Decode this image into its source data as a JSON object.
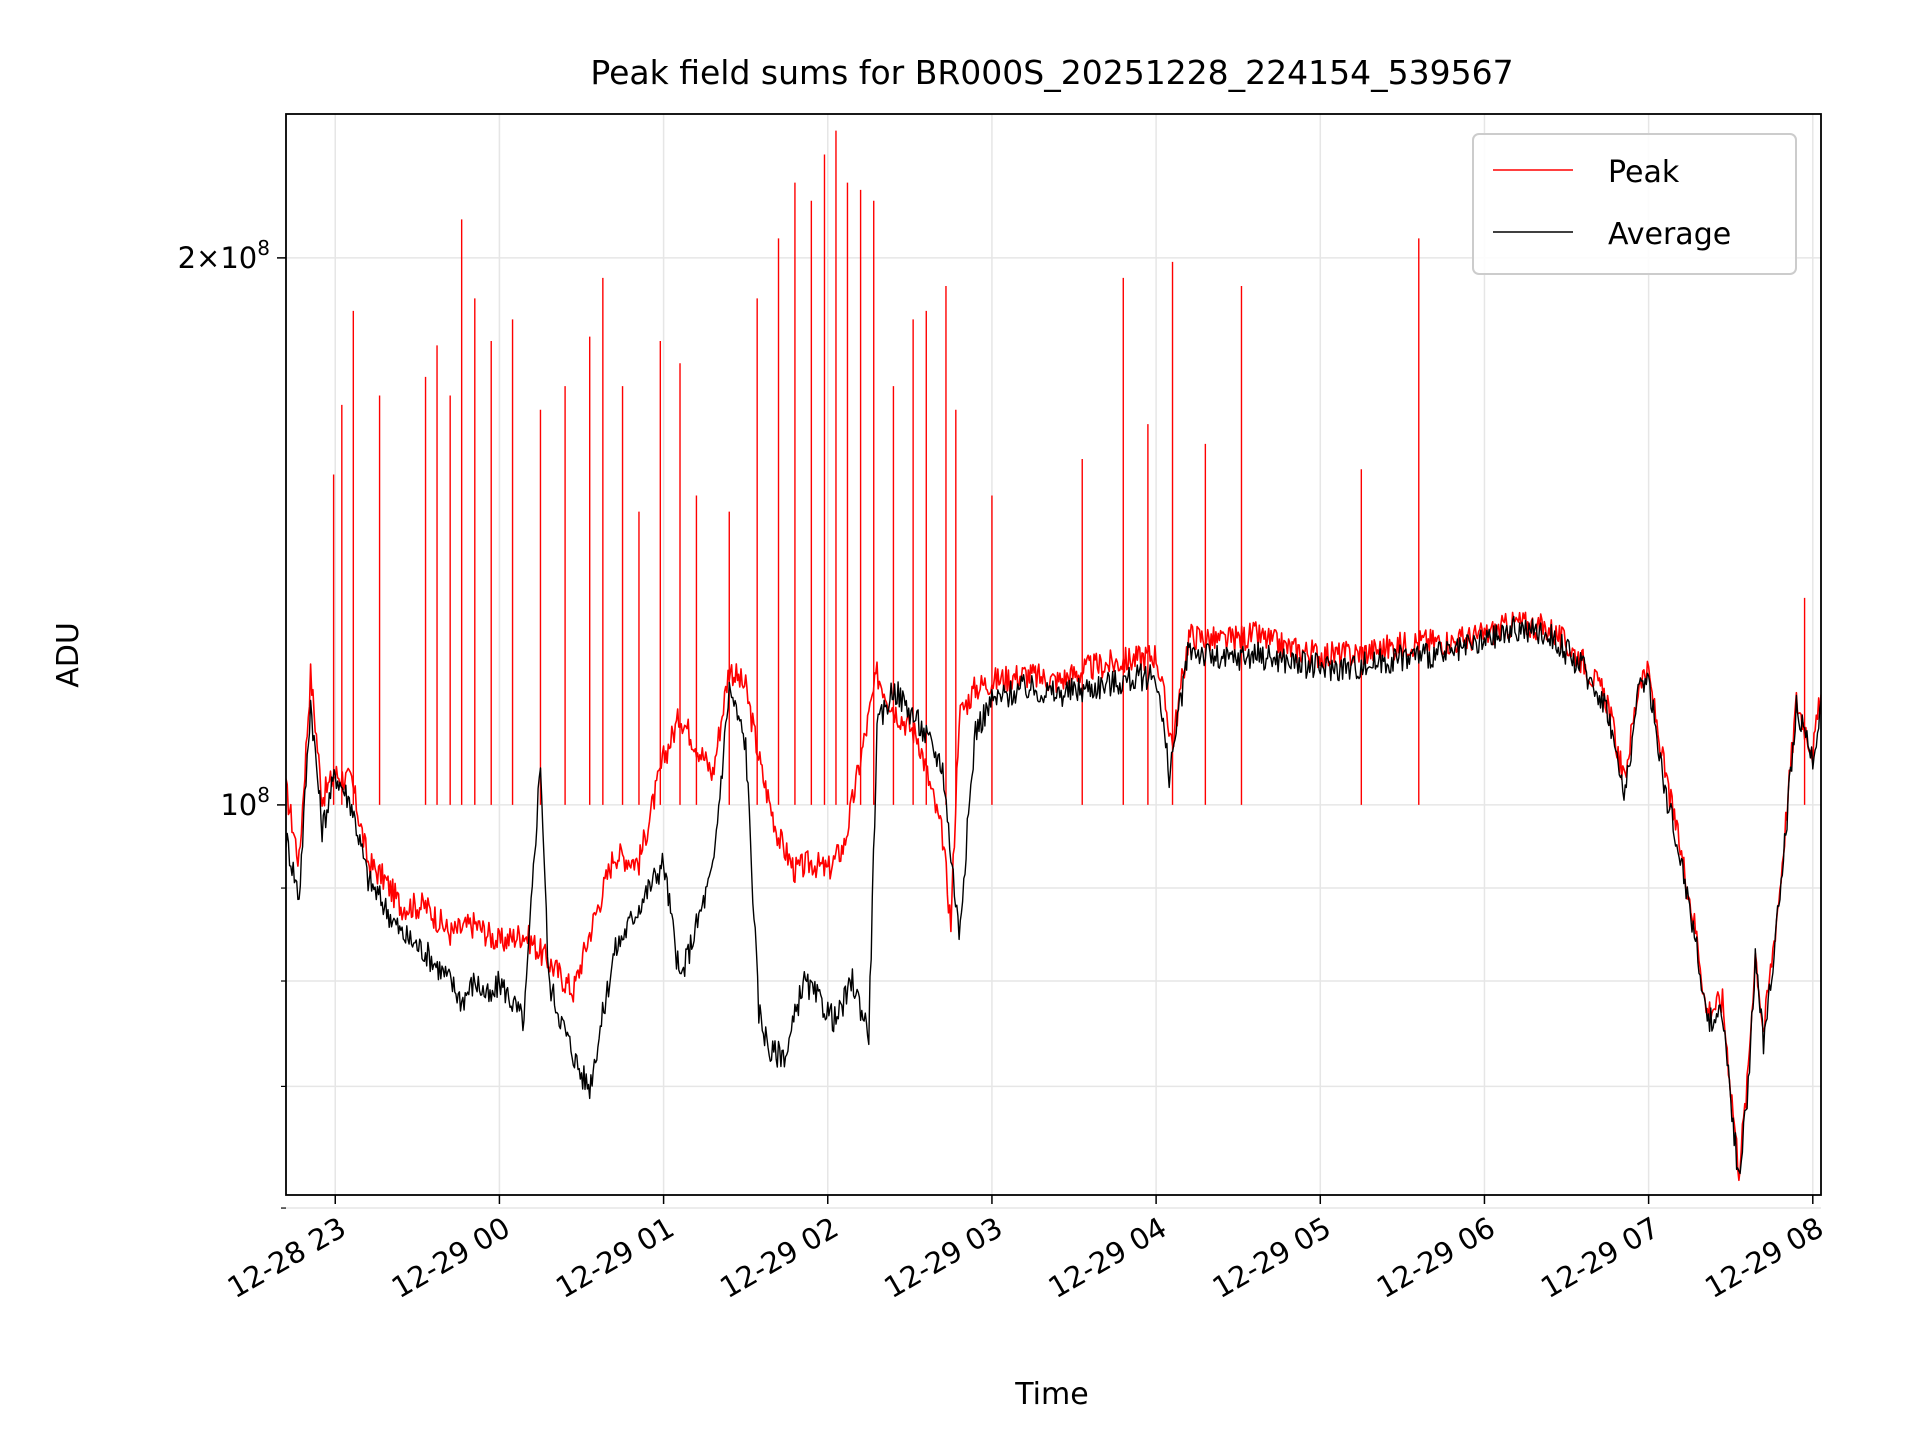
{
  "chart_data": {
    "type": "line",
    "title": "Peak field sums for BR000S_20251228_224154_539567",
    "xlabel": "Time",
    "ylabel": "ADU",
    "yscale": "log",
    "ylim": [
      61000000,
      240000000
    ],
    "xlim_hours": [
      22.7,
      32.05
    ],
    "grid": true,
    "legend_position": "top-right",
    "x_tick_labels": [
      "12-28 23",
      "12-29 00",
      "12-29 01",
      "12-29 02",
      "12-29 03",
      "12-29 04",
      "12-29 05",
      "12-29 06",
      "12-29 07",
      "12-29 08"
    ],
    "x_tick_hours": [
      23,
      24,
      25,
      26,
      27,
      28,
      29,
      30,
      31,
      32
    ],
    "y_tick_labels": [
      {
        "value": 100000000,
        "base": "10",
        "exp": "8",
        "prefix": ""
      },
      {
        "value": 200000000,
        "base": "10",
        "exp": "8",
        "prefix": "2×"
      }
    ],
    "y_minor_ticks": [
      60000000,
      70000000,
      80000000,
      90000000
    ],
    "series": [
      {
        "name": "Peak",
        "color": "#ff0000",
        "x_hours": [
          22.7,
          22.78,
          22.85,
          22.92,
          23.0,
          23.1,
          23.2,
          23.3,
          23.4,
          23.55,
          23.7,
          23.85,
          24.0,
          24.15,
          24.3,
          24.45,
          24.55,
          24.7,
          24.85,
          25.0,
          25.1,
          25.3,
          25.4,
          25.5,
          25.6,
          25.7,
          25.8,
          25.9,
          26.0,
          26.1,
          26.2,
          26.3,
          26.4,
          26.55,
          26.7,
          26.75,
          26.8,
          26.9,
          27.0,
          27.2,
          27.4,
          27.6,
          27.8,
          28.0,
          28.1,
          28.2,
          28.4,
          28.6,
          28.8,
          29.0,
          29.2,
          29.4,
          29.6,
          29.8,
          30.0,
          30.2,
          30.4,
          30.6,
          30.75,
          30.85,
          30.95,
          31.0,
          31.1,
          31.2,
          31.3,
          31.35,
          31.45,
          31.5,
          31.55,
          31.6,
          31.65,
          31.7,
          31.8,
          31.9,
          32.0,
          32.05
        ],
        "values": [
          102000000,
          93000000,
          118000000,
          101000000,
          104000000,
          103000000,
          93000000,
          91000000,
          88000000,
          88000000,
          85000000,
          86000000,
          84000000,
          85000000,
          82000000,
          79000000,
          85000000,
          94000000,
          93000000,
          106000000,
          112000000,
          104000000,
          119000000,
          116000000,
          104000000,
          96000000,
          92000000,
          93000000,
          92000000,
          95000000,
          106000000,
          118000000,
          113000000,
          109000000,
          96000000,
          86000000,
          112000000,
          116000000,
          117000000,
          118000000,
          117000000,
          119000000,
          120000000,
          121000000,
          108000000,
          124000000,
          123000000,
          124000000,
          122000000,
          121000000,
          121000000,
          122000000,
          123000000,
          123000000,
          124000000,
          126000000,
          125000000,
          120000000,
          114000000,
          103000000,
          118000000,
          118000000,
          104000000,
          94000000,
          84000000,
          77000000,
          78000000,
          70000000,
          63000000,
          70000000,
          83000000,
          75000000,
          90000000,
          114000000,
          107000000,
          115000000
        ],
        "spikes": [
          {
            "hour": 22.99,
            "value": 152000000
          },
          {
            "hour": 23.04,
            "value": 166000000
          },
          {
            "hour": 23.11,
            "value": 187000000
          },
          {
            "hour": 23.27,
            "value": 168000000
          },
          {
            "hour": 23.55,
            "value": 172000000
          },
          {
            "hour": 23.62,
            "value": 179000000
          },
          {
            "hour": 23.7,
            "value": 168000000
          },
          {
            "hour": 23.77,
            "value": 210000000
          },
          {
            "hour": 23.85,
            "value": 190000000
          },
          {
            "hour": 23.95,
            "value": 180000000
          },
          {
            "hour": 24.08,
            "value": 185000000
          },
          {
            "hour": 24.25,
            "value": 165000000
          },
          {
            "hour": 24.4,
            "value": 170000000
          },
          {
            "hour": 24.55,
            "value": 181000000
          },
          {
            "hour": 24.63,
            "value": 195000000
          },
          {
            "hour": 24.75,
            "value": 170000000
          },
          {
            "hour": 24.85,
            "value": 145000000
          },
          {
            "hour": 24.98,
            "value": 180000000
          },
          {
            "hour": 25.1,
            "value": 175000000
          },
          {
            "hour": 25.2,
            "value": 148000000
          },
          {
            "hour": 25.4,
            "value": 145000000
          },
          {
            "hour": 25.57,
            "value": 190000000
          },
          {
            "hour": 25.7,
            "value": 205000000
          },
          {
            "hour": 25.8,
            "value": 220000000
          },
          {
            "hour": 25.9,
            "value": 215000000
          },
          {
            "hour": 25.98,
            "value": 228000000
          },
          {
            "hour": 26.05,
            "value": 235000000
          },
          {
            "hour": 26.12,
            "value": 220000000
          },
          {
            "hour": 26.2,
            "value": 218000000
          },
          {
            "hour": 26.28,
            "value": 215000000
          },
          {
            "hour": 26.4,
            "value": 170000000
          },
          {
            "hour": 26.52,
            "value": 185000000
          },
          {
            "hour": 26.6,
            "value": 187000000
          },
          {
            "hour": 26.72,
            "value": 193000000
          },
          {
            "hour": 26.78,
            "value": 165000000
          },
          {
            "hour": 27.0,
            "value": 148000000
          },
          {
            "hour": 27.55,
            "value": 155000000
          },
          {
            "hour": 27.8,
            "value": 195000000
          },
          {
            "hour": 27.95,
            "value": 162000000
          },
          {
            "hour": 28.1,
            "value": 199000000
          },
          {
            "hour": 28.3,
            "value": 158000000
          },
          {
            "hour": 28.52,
            "value": 193000000
          },
          {
            "hour": 29.25,
            "value": 153000000
          },
          {
            "hour": 29.6,
            "value": 205000000
          },
          {
            "hour": 31.95,
            "value": 130000000
          }
        ]
      },
      {
        "name": "Average",
        "color": "#000000",
        "x_hours": [
          22.7,
          22.78,
          22.85,
          22.92,
          23.0,
          23.1,
          23.2,
          23.3,
          23.4,
          23.55,
          23.7,
          23.77,
          23.85,
          23.95,
          24.0,
          24.15,
          24.25,
          24.3,
          24.4,
          24.5,
          24.55,
          24.7,
          24.85,
          25.0,
          25.1,
          25.3,
          25.4,
          25.5,
          25.58,
          25.65,
          25.75,
          25.85,
          25.95,
          26.05,
          26.15,
          26.25,
          26.3,
          26.4,
          26.55,
          26.7,
          26.75,
          26.8,
          26.9,
          27.0,
          27.2,
          27.4,
          27.6,
          27.8,
          28.0,
          28.08,
          28.2,
          28.4,
          28.6,
          28.8,
          29.0,
          29.2,
          29.4,
          29.6,
          29.8,
          30.0,
          30.2,
          30.4,
          30.6,
          30.75,
          30.85,
          30.95,
          31.0,
          31.1,
          31.2,
          31.3,
          31.35,
          31.45,
          31.5,
          31.55,
          31.6,
          31.65,
          31.7,
          31.8,
          31.9,
          32.0,
          32.05
        ],
        "values": [
          96000000,
          89000000,
          114000000,
          97000000,
          104000000,
          100000000,
          91000000,
          88000000,
          85000000,
          83000000,
          80000000,
          78000000,
          80000000,
          78000000,
          80000000,
          76000000,
          106000000,
          80000000,
          75000000,
          71000000,
          70000000,
          83000000,
          88000000,
          93000000,
          80000000,
          92000000,
          116000000,
          108000000,
          77000000,
          73000000,
          73000000,
          80000000,
          78000000,
          76000000,
          80000000,
          75000000,
          110000000,
          116000000,
          111000000,
          105000000,
          94000000,
          85000000,
          110000000,
          114000000,
          116000000,
          115000000,
          116000000,
          117000000,
          118000000,
          104000000,
          122000000,
          120000000,
          121000000,
          120000000,
          119000000,
          119000000,
          120000000,
          121000000,
          121000000,
          123000000,
          125000000,
          124000000,
          119000000,
          113000000,
          101000000,
          117000000,
          117000000,
          102000000,
          93000000,
          83000000,
          76000000,
          77000000,
          69000000,
          62000000,
          69000000,
          82000000,
          74000000,
          89000000,
          113000000,
          106000000,
          114000000
        ]
      }
    ]
  }
}
